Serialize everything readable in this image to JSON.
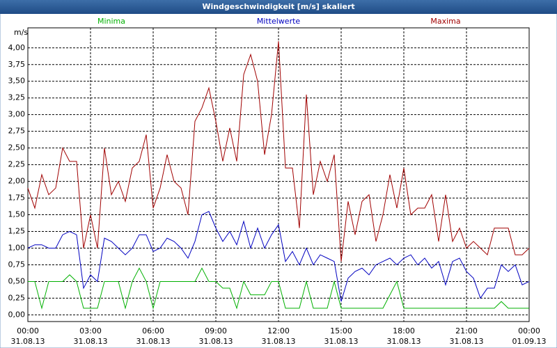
{
  "chart_data": {
    "type": "line",
    "title": "Windgeschwindigkeit [m/s] skaliert",
    "ylabel": "m/s",
    "x": [
      0,
      20,
      40,
      60,
      80,
      100,
      120,
      140,
      160,
      180,
      200,
      220,
      240,
      260,
      280,
      300,
      320,
      340,
      360,
      380,
      400,
      420,
      440,
      460,
      480,
      500,
      520,
      540,
      560,
      580,
      600,
      620,
      640,
      660,
      680,
      700,
      720,
      740,
      760,
      780,
      800,
      820,
      840,
      860,
      880,
      900,
      920,
      940,
      960,
      980,
      1000,
      1020,
      1040,
      1060,
      1080,
      1100,
      1120,
      1140,
      1160,
      1180,
      1200,
      1220,
      1240,
      1260,
      1280,
      1300,
      1320,
      1340,
      1360,
      1380,
      1400,
      1420,
      1440
    ],
    "xlim": [
      0,
      1440
    ],
    "xticks": [
      {
        "value": 0,
        "label": "00:00",
        "date": "31.08.13"
      },
      {
        "value": 180,
        "label": "03:00",
        "date": "31.08.13"
      },
      {
        "value": 360,
        "label": "06:00",
        "date": "31.08.13"
      },
      {
        "value": 540,
        "label": "09:00",
        "date": "31.08.13"
      },
      {
        "value": 720,
        "label": "12:00",
        "date": "31.08.13"
      },
      {
        "value": 900,
        "label": "15:00",
        "date": "31.08.13"
      },
      {
        "value": 1080,
        "label": "18:00",
        "date": "31.08.13"
      },
      {
        "value": 1260,
        "label": "21:00",
        "date": "31.08.13"
      },
      {
        "value": 1440,
        "label": "00:00",
        "date": "01.09.13"
      }
    ],
    "ylim": [
      -0.1,
      4.3
    ],
    "yticks": [
      {
        "value": 0,
        "label": "0,00"
      },
      {
        "value": 0.25,
        "label": "0,25"
      },
      {
        "value": 0.5,
        "label": "0,50"
      },
      {
        "value": 0.75,
        "label": "0,75"
      },
      {
        "value": 1,
        "label": "1,00"
      },
      {
        "value": 1.25,
        "label": "1,25"
      },
      {
        "value": 1.5,
        "label": "1,50"
      },
      {
        "value": 1.75,
        "label": "1,75"
      },
      {
        "value": 2,
        "label": "2,00"
      },
      {
        "value": 2.25,
        "label": "2,25"
      },
      {
        "value": 2.5,
        "label": "2,50"
      },
      {
        "value": 2.75,
        "label": "2,75"
      },
      {
        "value": 3,
        "label": "3,00"
      },
      {
        "value": 3.25,
        "label": "3,25"
      },
      {
        "value": 3.5,
        "label": "3,50"
      },
      {
        "value": 3.75,
        "label": "3,75"
      },
      {
        "value": 4,
        "label": "4,00"
      }
    ],
    "grid": true,
    "series": [
      {
        "name": "Minima",
        "color": "#00b000",
        "values": [
          0.5,
          0.5,
          0.1,
          0.5,
          0.5,
          0.5,
          0.6,
          0.5,
          0.1,
          0.1,
          0.1,
          0.5,
          0.5,
          0.5,
          0.1,
          0.5,
          0.7,
          0.5,
          0.1,
          0.5,
          0.5,
          0.5,
          0.5,
          0.5,
          0.5,
          0.7,
          0.5,
          0.5,
          0.4,
          0.4,
          0.1,
          0.5,
          0.3,
          0.3,
          0.3,
          0.5,
          0.5,
          0.1,
          0.1,
          0.1,
          0.5,
          0.1,
          0.1,
          0.1,
          0.5,
          0.1,
          0.1,
          0.1,
          0.1,
          0.1,
          0.1,
          0.1,
          0.3,
          0.5,
          0.1,
          0.1,
          0.1,
          0.1,
          0.1,
          0.1,
          0.1,
          0.1,
          0.1,
          0.1,
          0.1,
          0.1,
          0.1,
          0.1,
          0.2,
          0.1,
          0.1,
          0.1,
          0.1
        ]
      },
      {
        "name": "Mittelwerte",
        "color": "#0000c0",
        "values": [
          1.0,
          1.05,
          1.05,
          1.0,
          1.0,
          1.2,
          1.25,
          1.2,
          0.4,
          0.6,
          0.5,
          1.15,
          1.1,
          1.0,
          0.9,
          1.0,
          1.2,
          1.2,
          0.95,
          1.0,
          1.15,
          1.1,
          1.0,
          0.85,
          1.1,
          1.5,
          1.55,
          1.3,
          1.1,
          1.25,
          1.05,
          1.4,
          1.0,
          1.3,
          1.0,
          1.2,
          1.35,
          0.8,
          0.95,
          0.75,
          1.0,
          0.75,
          0.9,
          0.85,
          0.8,
          0.2,
          0.55,
          0.65,
          0.7,
          0.6,
          0.75,
          0.8,
          0.85,
          0.75,
          0.85,
          0.9,
          0.75,
          0.85,
          0.7,
          0.8,
          0.45,
          0.8,
          0.85,
          0.65,
          0.55,
          0.25,
          0.4,
          0.4,
          0.75,
          0.65,
          0.75,
          0.45,
          0.5
        ]
      },
      {
        "name": "Maxima",
        "color": "#a00000",
        "values": [
          1.9,
          1.6,
          2.1,
          1.8,
          1.9,
          2.5,
          2.3,
          2.3,
          1.0,
          1.5,
          1.0,
          2.5,
          1.8,
          2.0,
          1.7,
          2.2,
          2.3,
          2.7,
          1.6,
          1.9,
          2.4,
          2.0,
          1.9,
          1.5,
          2.9,
          3.1,
          3.4,
          2.9,
          2.3,
          2.8,
          2.3,
          3.6,
          3.9,
          3.5,
          2.4,
          3.0,
          4.1,
          2.2,
          2.2,
          1.3,
          3.3,
          1.8,
          2.3,
          2.0,
          2.4,
          0.8,
          1.7,
          1.2,
          1.7,
          1.8,
          1.1,
          1.5,
          2.1,
          1.6,
          2.2,
          1.5,
          1.6,
          1.6,
          1.8,
          1.1,
          1.8,
          1.1,
          1.3,
          1.0,
          1.1,
          1.0,
          0.9,
          1.3,
          1.3,
          1.3,
          0.9,
          0.9,
          1.0
        ]
      }
    ]
  }
}
